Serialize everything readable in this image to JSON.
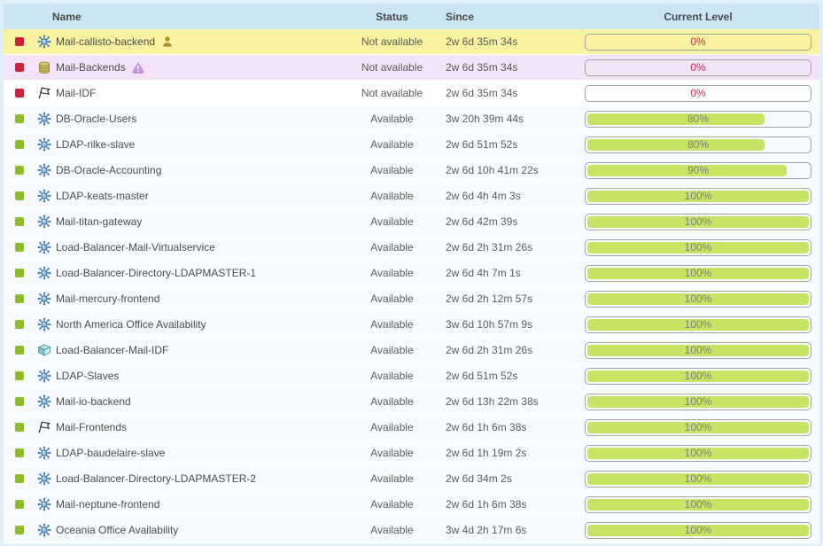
{
  "columns": {
    "name": "Name",
    "status": "Status",
    "since": "Since",
    "level": "Current Level"
  },
  "colors": {
    "header_bg": "#cbe5f2",
    "frame": "#dfeef7",
    "row_unavailable_yellow": "#f9f2a0",
    "row_unavailable_purple": "#f3e3f7",
    "row_available": "#f7fbfd",
    "indicator_red": "#cf2138",
    "indicator_green": "#8bbd24",
    "bar_fill_green": "#c7e565",
    "bar_border": "#a3a3a3",
    "percent_text_gray": "#7d7d7d",
    "percent_text_red": "#d5214d"
  },
  "rows": [
    {
      "name": "Mail-callisto-backend",
      "icon": "cluster-icon",
      "extra_icon": "person-icon",
      "status": "Not available",
      "since": "2w 6d 35m 34s",
      "level": 0,
      "level_label": "0%",
      "indicator": "red",
      "row_style": "unavailable-yellow"
    },
    {
      "name": "Mail-Backends",
      "icon": "database-icon",
      "extra_icon": "warning-icon",
      "status": "Not available",
      "since": "2w 6d 35m 34s",
      "level": 0,
      "level_label": "0%",
      "indicator": "red",
      "row_style": "unavailable-purple"
    },
    {
      "name": "Mail-IDF",
      "icon": "flag-icon",
      "extra_icon": "",
      "status": "Not available",
      "since": "2w 6d 35m 34s",
      "level": 0,
      "level_label": "0%",
      "indicator": "red",
      "row_style": "unavailable-white"
    },
    {
      "name": "DB-Oracle-Users",
      "icon": "cluster-icon",
      "extra_icon": "",
      "status": "Available",
      "since": "3w 20h 39m 44s",
      "level": 80,
      "level_label": "80%",
      "indicator": "green",
      "row_style": "available"
    },
    {
      "name": "LDAP-rilke-slave",
      "icon": "cluster-icon",
      "extra_icon": "",
      "status": "Available",
      "since": "2w 6d 51m 52s",
      "level": 80,
      "level_label": "80%",
      "indicator": "green",
      "row_style": "available"
    },
    {
      "name": "DB-Oracle-Accounting",
      "icon": "cluster-icon",
      "extra_icon": "",
      "status": "Available",
      "since": "2w 6d 10h 41m 22s",
      "level": 90,
      "level_label": "90%",
      "indicator": "green",
      "row_style": "available"
    },
    {
      "name": "LDAP-keats-master",
      "icon": "cluster-icon",
      "extra_icon": "",
      "status": "Available",
      "since": "2w 6d 4h 4m 3s",
      "level": 100,
      "level_label": "100%",
      "indicator": "green",
      "row_style": "available"
    },
    {
      "name": "Mail-titan-gateway",
      "icon": "cluster-icon",
      "extra_icon": "",
      "status": "Available",
      "since": "2w 6d 42m 39s",
      "level": 100,
      "level_label": "100%",
      "indicator": "green",
      "row_style": "available"
    },
    {
      "name": "Load-Balancer-Mail-Virtualservice",
      "icon": "cluster-icon",
      "extra_icon": "",
      "status": "Available",
      "since": "2w 6d 2h 31m 26s",
      "level": 100,
      "level_label": "100%",
      "indicator": "green",
      "row_style": "available"
    },
    {
      "name": "Load-Balancer-Directory-LDAPMASTER-1",
      "icon": "cluster-icon",
      "extra_icon": "",
      "status": "Available",
      "since": "2w 6d 4h 7m 1s",
      "level": 100,
      "level_label": "100%",
      "indicator": "green",
      "row_style": "available"
    },
    {
      "name": "Mail-mercury-frontend",
      "icon": "cluster-icon",
      "extra_icon": "",
      "status": "Available",
      "since": "2w 6d 2h 12m 57s",
      "level": 100,
      "level_label": "100%",
      "indicator": "green",
      "row_style": "available"
    },
    {
      "name": "North America Office Availability",
      "icon": "cluster-icon",
      "extra_icon": "",
      "status": "Available",
      "since": "3w 6d 10h 57m 9s",
      "level": 100,
      "level_label": "100%",
      "indicator": "green",
      "row_style": "available"
    },
    {
      "name": "Load-Balancer-Mail-IDF",
      "icon": "cube-icon",
      "extra_icon": "",
      "status": "Available",
      "since": "2w 6d 2h 31m 26s",
      "level": 100,
      "level_label": "100%",
      "indicator": "green",
      "row_style": "available"
    },
    {
      "name": "LDAP-Slaves",
      "icon": "cluster-icon",
      "extra_icon": "",
      "status": "Available",
      "since": "2w 6d 51m 52s",
      "level": 100,
      "level_label": "100%",
      "indicator": "green",
      "row_style": "available"
    },
    {
      "name": "Mail-io-backend",
      "icon": "cluster-icon",
      "extra_icon": "",
      "status": "Available",
      "since": "2w 6d 13h 22m 38s",
      "level": 100,
      "level_label": "100%",
      "indicator": "green",
      "row_style": "available"
    },
    {
      "name": "Mail-Frontends",
      "icon": "flag-icon",
      "extra_icon": "",
      "status": "Available",
      "since": "2w 6d 1h 6m 38s",
      "level": 100,
      "level_label": "100%",
      "indicator": "green",
      "row_style": "available"
    },
    {
      "name": "LDAP-baudelaire-slave",
      "icon": "cluster-icon",
      "extra_icon": "",
      "status": "Available",
      "since": "2w 6d 1h 19m 2s",
      "level": 100,
      "level_label": "100%",
      "indicator": "green",
      "row_style": "available"
    },
    {
      "name": "Load-Balancer-Directory-LDAPMASTER-2",
      "icon": "cluster-icon",
      "extra_icon": "",
      "status": "Available",
      "since": "2w 6d 34m 2s",
      "level": 100,
      "level_label": "100%",
      "indicator": "green",
      "row_style": "available"
    },
    {
      "name": "Mail-neptune-frontend",
      "icon": "cluster-icon",
      "extra_icon": "",
      "status": "Available",
      "since": "2w 6d 1h 6m 38s",
      "level": 100,
      "level_label": "100%",
      "indicator": "green",
      "row_style": "available"
    },
    {
      "name": "Oceania Office Availability",
      "icon": "cluster-icon",
      "extra_icon": "",
      "status": "Available",
      "since": "3w 4d 2h 17m 6s",
      "level": 100,
      "level_label": "100%",
      "indicator": "green",
      "row_style": "available"
    }
  ]
}
